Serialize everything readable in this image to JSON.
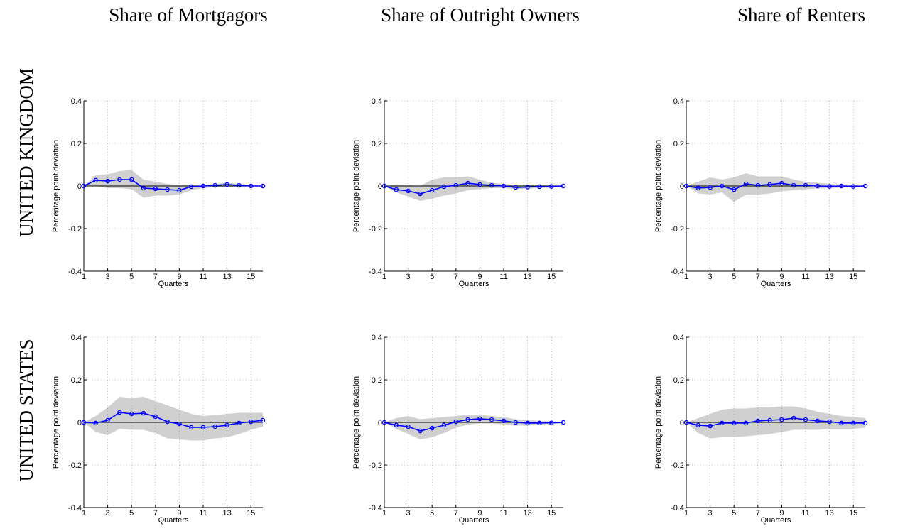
{
  "column_titles": [
    "Share of Mortgagors",
    "Share of Outright Owners",
    "Share of Renters"
  ],
  "row_labels": [
    "UNITED KINGDOM",
    "UNITED STATES"
  ],
  "chart_data": [
    {
      "type": "line",
      "xlabel": "Quarters",
      "ylabel": "Percentage point deviation",
      "x": [
        1,
        2,
        3,
        4,
        5,
        6,
        7,
        8,
        9,
        10,
        11,
        12,
        13,
        14,
        15,
        16
      ],
      "xlim": [
        1,
        16
      ],
      "xticks": [
        1,
        3,
        5,
        7,
        9,
        11,
        13,
        15
      ],
      "ylim": [
        -0.4,
        0.4
      ],
      "yticks": [
        -0.4,
        -0.2,
        0,
        0.2,
        0.4
      ],
      "grid": true,
      "series": [
        {
          "color": "#0000ff",
          "values": [
            0,
            0.027,
            0.023,
            0.03,
            0.03,
            -0.01,
            -0.013,
            -0.017,
            -0.02,
            -0.003,
            0,
            0.003,
            0.007,
            0.003,
            0,
            0
          ]
        }
      ],
      "band": {
        "color": "#d0d0d0",
        "lower": [
          0,
          0,
          -0.01,
          -0.01,
          -0.015,
          -0.055,
          -0.045,
          -0.045,
          -0.04,
          -0.02,
          -0.01,
          -0.005,
          -0.005,
          -0.005,
          -0.003,
          0
        ],
        "upper": [
          0,
          0.05,
          0.055,
          0.07,
          0.075,
          0.03,
          0.02,
          0.01,
          0.005,
          0.005,
          0.005,
          0.01,
          0.015,
          0.01,
          0.005,
          0
        ]
      }
    },
    {
      "type": "line",
      "xlabel": "Quarters",
      "ylabel": "Percentage point deviation",
      "x": [
        1,
        2,
        3,
        4,
        5,
        6,
        7,
        8,
        9,
        10,
        11,
        12,
        13,
        14,
        15,
        16
      ],
      "xlim": [
        1,
        16
      ],
      "xticks": [
        1,
        3,
        5,
        7,
        9,
        11,
        13,
        15
      ],
      "ylim": [
        -0.4,
        0.4
      ],
      "yticks": [
        -0.4,
        -0.2,
        0,
        0.2,
        0.4
      ],
      "grid": true,
      "series": [
        {
          "color": "#0000ff",
          "values": [
            0,
            -0.017,
            -0.023,
            -0.037,
            -0.02,
            -0.003,
            0.003,
            0.013,
            0.007,
            0.003,
            0,
            -0.007,
            -0.005,
            -0.003,
            -0.002,
            0
          ]
        }
      ],
      "band": {
        "color": "#d0d0d0",
        "lower": [
          0,
          -0.03,
          -0.05,
          -0.07,
          -0.06,
          -0.045,
          -0.035,
          -0.02,
          -0.015,
          -0.01,
          -0.01,
          -0.015,
          -0.013,
          -0.01,
          -0.008,
          0
        ],
        "upper": [
          0,
          0.005,
          0.005,
          0,
          0.03,
          0.04,
          0.04,
          0.045,
          0.03,
          0.015,
          0.01,
          0.005,
          0.005,
          0.005,
          0.005,
          0
        ]
      }
    },
    {
      "type": "line",
      "xlabel": "Quarters",
      "ylabel": "Percentage point deviation",
      "x": [
        1,
        2,
        3,
        4,
        5,
        6,
        7,
        8,
        9,
        10,
        11,
        12,
        13,
        14,
        15,
        16
      ],
      "xlim": [
        1,
        16
      ],
      "xticks": [
        1,
        3,
        5,
        7,
        9,
        11,
        13,
        15
      ],
      "ylim": [
        -0.4,
        0.4
      ],
      "yticks": [
        -0.4,
        -0.2,
        0,
        0.2,
        0.4
      ],
      "grid": true,
      "series": [
        {
          "color": "#0000ff",
          "values": [
            0,
            -0.01,
            -0.007,
            0,
            -0.017,
            0.01,
            0.003,
            0.007,
            0.013,
            0.003,
            0.003,
            0,
            -0.002,
            0,
            -0.002,
            0
          ]
        }
      ],
      "band": {
        "color": "#d0d0d0",
        "lower": [
          0,
          -0.035,
          -0.04,
          -0.03,
          -0.075,
          -0.04,
          -0.04,
          -0.035,
          -0.025,
          -0.02,
          -0.015,
          -0.012,
          -0.01,
          -0.008,
          -0.005,
          0
        ],
        "upper": [
          0,
          0.02,
          0.04,
          0.03,
          0.04,
          0.06,
          0.045,
          0.045,
          0.045,
          0.03,
          0.02,
          0.015,
          0.01,
          0.008,
          0.005,
          0
        ]
      }
    },
    {
      "type": "line",
      "xlabel": "Quarters",
      "ylabel": "Percentage point deviation",
      "x": [
        1,
        2,
        3,
        4,
        5,
        6,
        7,
        8,
        9,
        10,
        11,
        12,
        13,
        14,
        15,
        16
      ],
      "xlim": [
        1,
        16
      ],
      "xticks": [
        1,
        3,
        5,
        7,
        9,
        11,
        13,
        15
      ],
      "ylim": [
        -0.4,
        0.4
      ],
      "yticks": [
        -0.4,
        -0.2,
        0,
        0.2,
        0.4
      ],
      "grid": true,
      "series": [
        {
          "color": "#0000ff",
          "values": [
            0,
            -0.003,
            0.01,
            0.047,
            0.04,
            0.043,
            0.027,
            0.003,
            -0.007,
            -0.023,
            -0.023,
            -0.02,
            -0.013,
            -0.003,
            0.003,
            0.01
          ]
        }
      ],
      "band": {
        "color": "#d0d0d0",
        "lower": [
          0,
          -0.045,
          -0.06,
          -0.03,
          -0.035,
          -0.035,
          -0.05,
          -0.075,
          -0.08,
          -0.085,
          -0.085,
          -0.075,
          -0.07,
          -0.055,
          -0.035,
          -0.02
        ],
        "upper": [
          0,
          0.03,
          0.07,
          0.12,
          0.115,
          0.12,
          0.1,
          0.08,
          0.06,
          0.04,
          0.03,
          0.035,
          0.04,
          0.045,
          0.045,
          0.045
        ]
      }
    },
    {
      "type": "line",
      "xlabel": "Quarters",
      "ylabel": "Percentage point deviation",
      "x": [
        1,
        2,
        3,
        4,
        5,
        6,
        7,
        8,
        9,
        10,
        11,
        12,
        13,
        14,
        15,
        16
      ],
      "xlim": [
        1,
        16
      ],
      "xticks": [
        1,
        3,
        5,
        7,
        9,
        11,
        13,
        15
      ],
      "ylim": [
        -0.4,
        0.4
      ],
      "yticks": [
        -0.4,
        -0.2,
        0,
        0.2,
        0.4
      ],
      "grid": true,
      "series": [
        {
          "color": "#0000ff",
          "values": [
            0,
            -0.013,
            -0.02,
            -0.04,
            -0.027,
            -0.013,
            0.003,
            0.013,
            0.017,
            0.013,
            0.007,
            0,
            -0.003,
            -0.003,
            -0.002,
            0
          ]
        }
      ],
      "band": {
        "color": "#d0d0d0",
        "lower": [
          0,
          -0.03,
          -0.055,
          -0.08,
          -0.07,
          -0.05,
          -0.025,
          -0.01,
          -0.005,
          -0.005,
          -0.01,
          -0.015,
          -0.015,
          -0.01,
          -0.008,
          -0.005
        ],
        "upper": [
          0,
          0.02,
          0.03,
          0.015,
          0.02,
          0.025,
          0.03,
          0.035,
          0.035,
          0.03,
          0.025,
          0.015,
          0.01,
          0.008,
          0.005,
          0.003
        ]
      }
    },
    {
      "type": "line",
      "xlabel": "Quarters",
      "ylabel": "Percentage point deviation",
      "x": [
        1,
        2,
        3,
        4,
        5,
        6,
        7,
        8,
        9,
        10,
        11,
        12,
        13,
        14,
        15,
        16
      ],
      "xlim": [
        1,
        16
      ],
      "xticks": [
        1,
        3,
        5,
        7,
        9,
        11,
        13,
        15
      ],
      "ylim": [
        -0.4,
        0.4
      ],
      "yticks": [
        -0.4,
        -0.2,
        0,
        0.2,
        0.4
      ],
      "grid": true,
      "series": [
        {
          "color": "#0000ff",
          "values": [
            0,
            -0.013,
            -0.017,
            -0.003,
            -0.003,
            -0.003,
            0.007,
            0.01,
            0.013,
            0.02,
            0.013,
            0.007,
            0.003,
            -0.003,
            -0.003,
            -0.003
          ]
        }
      ],
      "band": {
        "color": "#d0d0d0",
        "lower": [
          0,
          -0.05,
          -0.075,
          -0.07,
          -0.07,
          -0.065,
          -0.06,
          -0.055,
          -0.045,
          -0.035,
          -0.035,
          -0.035,
          -0.03,
          -0.03,
          -0.03,
          -0.025
        ],
        "upper": [
          0,
          0.02,
          0.04,
          0.06,
          0.065,
          0.065,
          0.07,
          0.07,
          0.075,
          0.075,
          0.065,
          0.05,
          0.04,
          0.03,
          0.025,
          0.02
        ]
      }
    }
  ]
}
